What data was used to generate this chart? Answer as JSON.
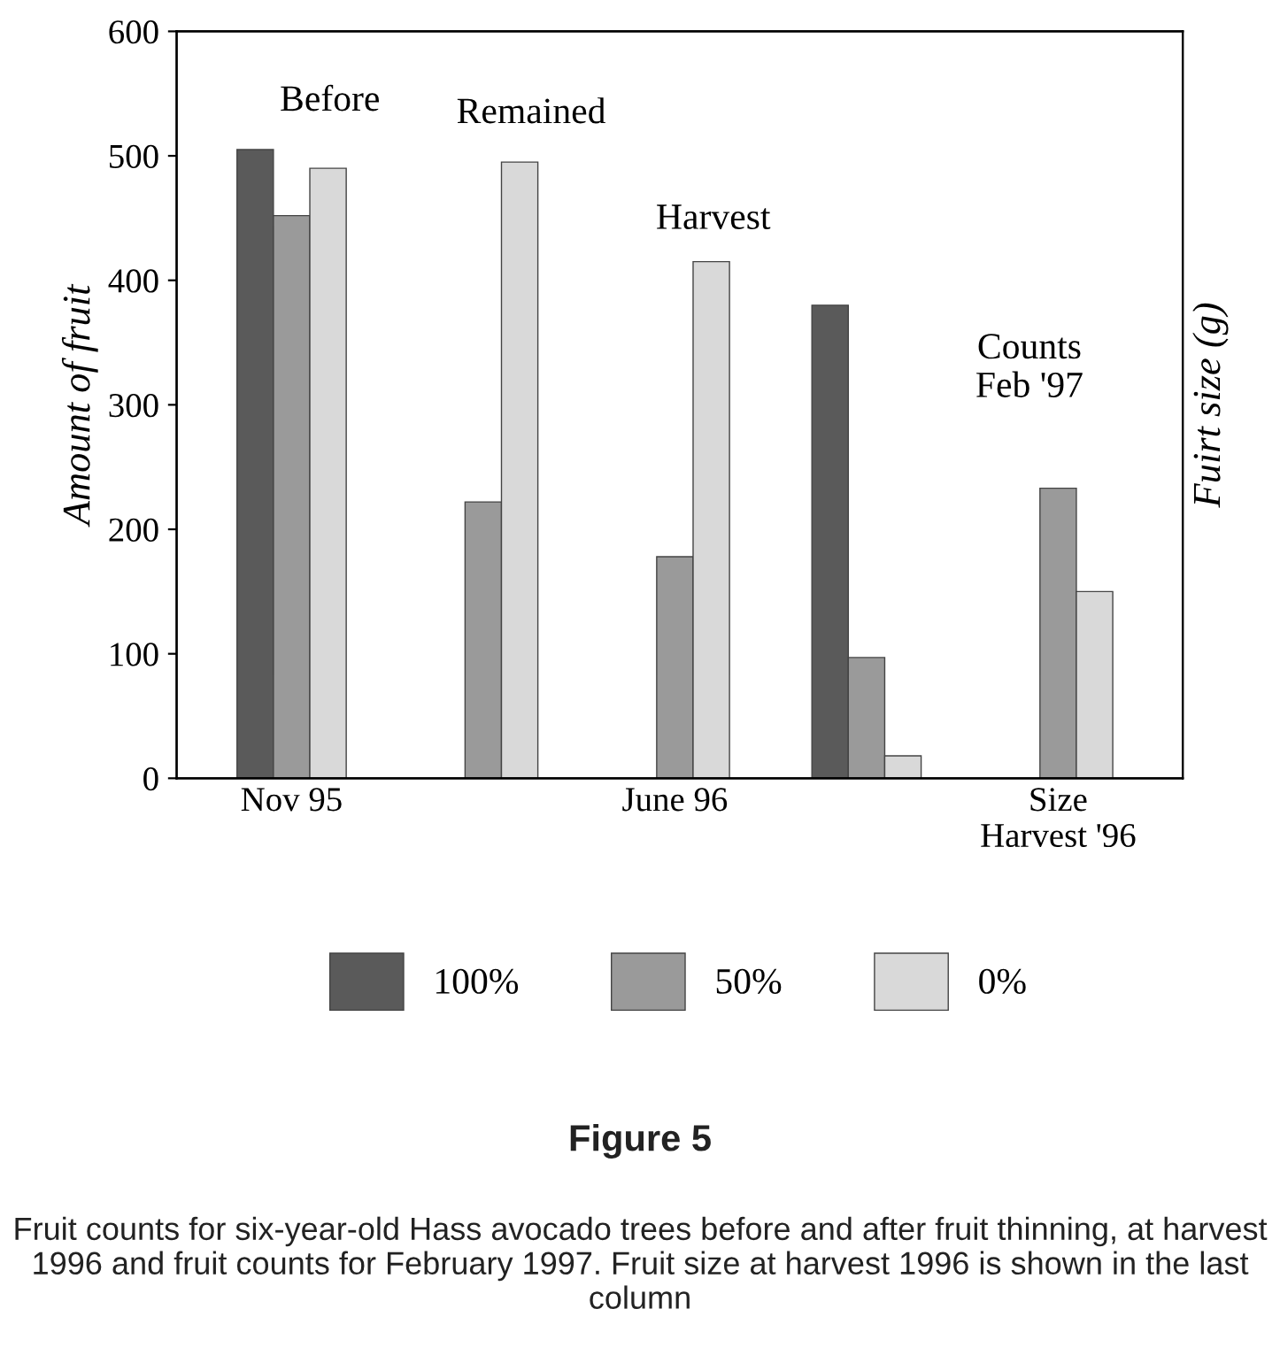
{
  "chart_data": {
    "type": "bar",
    "title": "Figure 5",
    "ylabel": "Amount of fruit",
    "y2label": "Fuirt size (g)",
    "categories": [
      "Nov 95",
      null,
      "June 96",
      null,
      "Size\nHarvest '96"
    ],
    "series": [
      {
        "name": "100%",
        "color": "#5a5a5a",
        "values": [
          505,
          null,
          null,
          380,
          null
        ]
      },
      {
        "name": "50%",
        "color": "#9a9a9a",
        "values": [
          452,
          222,
          178,
          97,
          233
        ]
      },
      {
        "name": "0%",
        "color": "#d9d9d9",
        "values": [
          490,
          495,
          415,
          18,
          150
        ]
      }
    ],
    "ylim": [
      0,
      600
    ],
    "yticks": [
      0,
      100,
      200,
      300,
      400,
      500,
      600
    ],
    "grid": false,
    "legend": "bottom",
    "annotations": [
      "Before",
      "Remained",
      "Harvest",
      "Counts\nFeb '97",
      "Fruit counts for six-year-old Hass avocado trees before and after fruit thinning, at harvest 1996 and fruit counts for February 1997. Fruit size at harvest 1996 is shown in the last column"
    ]
  }
}
